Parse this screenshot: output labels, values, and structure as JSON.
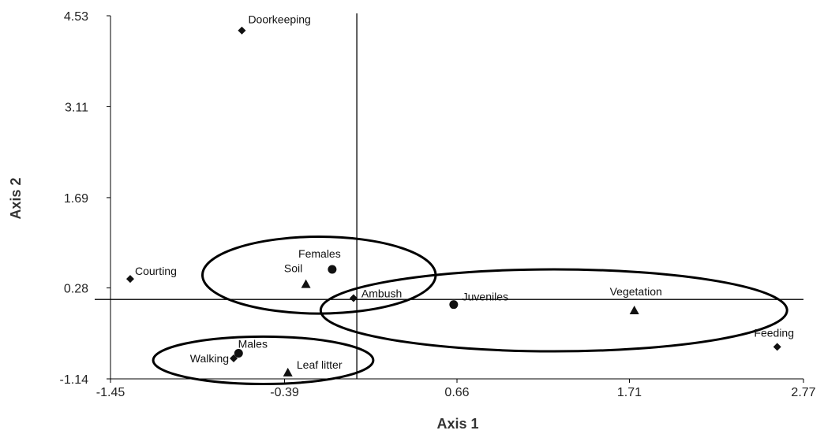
{
  "chart_data": {
    "type": "scatter",
    "title": "",
    "xlabel": "Axis 1",
    "ylabel": "Axis 2",
    "xlim": [
      -1.45,
      2.77
    ],
    "ylim": [
      -1.14,
      4.53
    ],
    "x_ticks": [
      "-1.45",
      "-0.39",
      "0.66",
      "1.71",
      "2.77"
    ],
    "y_ticks": [
      "-1.14",
      "0.28",
      "1.69",
      "3.11",
      "4.53"
    ],
    "x_tick_values": [
      -1.45,
      -0.39,
      0.66,
      1.71,
      2.77
    ],
    "y_tick_values": [
      -1.14,
      0.28,
      1.69,
      3.11,
      4.53
    ],
    "grid": false,
    "reference_lines": {
      "x": 0.05,
      "y": 0.1
    },
    "points": [
      {
        "label": "Doorkeeping",
        "x": -0.65,
        "y": 4.3,
        "marker": "diamond"
      },
      {
        "label": "Courting",
        "x": -1.33,
        "y": 0.42,
        "marker": "diamond"
      },
      {
        "label": "Ambush",
        "x": 0.03,
        "y": 0.12,
        "marker": "diamond"
      },
      {
        "label": "Walking",
        "x": -0.7,
        "y": -0.82,
        "marker": "diamond"
      },
      {
        "label": "Feeding",
        "x": 2.61,
        "y": -0.64,
        "marker": "diamond"
      },
      {
        "label": "Females",
        "x": -0.1,
        "y": 0.57,
        "marker": "circle"
      },
      {
        "label": "Males",
        "x": -0.67,
        "y": -0.74,
        "marker": "circle"
      },
      {
        "label": "Juveniles",
        "x": 0.64,
        "y": 0.02,
        "marker": "circle"
      },
      {
        "label": "Soil",
        "x": -0.26,
        "y": 0.34,
        "marker": "triangle"
      },
      {
        "label": "Leaf litter",
        "x": -0.37,
        "y": -1.04,
        "marker": "triangle"
      },
      {
        "label": "Vegetation",
        "x": 1.74,
        "y": -0.07,
        "marker": "triangle"
      }
    ],
    "ellipses": [
      {
        "cx": -0.18,
        "cy": 0.48,
        "rx": 0.71,
        "ry": 0.6
      },
      {
        "cx": -0.52,
        "cy": -0.85,
        "rx": 0.67,
        "ry": 0.37
      },
      {
        "cx": 1.25,
        "cy": -0.07,
        "rx": 1.42,
        "ry": 0.64
      }
    ]
  }
}
